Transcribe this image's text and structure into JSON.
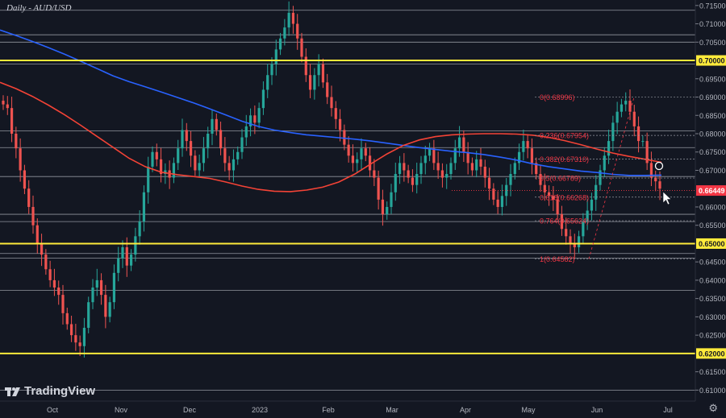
{
  "title": "Daily - AUD/USD",
  "brand": "TradingView",
  "settings_icon": "gear-icon",
  "colors": {
    "background": "#131722",
    "up": "#26a69a",
    "down": "#ef5350",
    "ma_blue": "#2962ff",
    "ma_red": "#f44336",
    "key_level": "#ffeb3b",
    "fib": "#f23645",
    "current_price": "#f23645"
  },
  "chart_data": {
    "type": "candlestick",
    "title": "Daily - AUD/USD",
    "ylim": [
      0.607,
      0.7165
    ],
    "y_ticks": [
      "0.71500",
      "0.71000",
      "0.70500",
      "0.69500",
      "0.69000",
      "0.68500",
      "0.68000",
      "0.67500",
      "0.67000",
      "0.66000",
      "0.65500",
      "0.64500",
      "0.64000",
      "0.63500",
      "0.63000",
      "0.62500",
      "0.61500",
      "0.61000"
    ],
    "x_ticks": [
      "Oct",
      "Nov",
      "Dec",
      "2023",
      "Feb",
      "Mar",
      "Apr",
      "May",
      "Jun",
      "Jul"
    ],
    "key_levels": [
      {
        "price": 0.7,
        "label": "0.70000"
      },
      {
        "price": 0.65,
        "label": "0.65000"
      },
      {
        "price": 0.62,
        "label": "0.62000"
      }
    ],
    "horizontal_lines": [
      0.7137,
      0.707,
      0.705,
      0.699,
      0.6808,
      0.6762,
      0.6683,
      0.658,
      0.656,
      0.6473,
      0.646,
      0.6372,
      0.61
    ],
    "current_price": {
      "value": 0.66449,
      "label": "0.66449"
    },
    "fibonacci": [
      {
        "ratio": "0",
        "price": 0.68996,
        "label": "0(0.68996)"
      },
      {
        "ratio": "0.236",
        "price": 0.67954,
        "label": "0.236(0.67954)"
      },
      {
        "ratio": "0.382",
        "price": 0.6731,
        "label": "0.382(0.67310)"
      },
      {
        "ratio": "0.5",
        "price": 0.66789,
        "label": "0.5(0.66789)"
      },
      {
        "ratio": "0.618",
        "price": 0.66268,
        "label": "0.618(0.66268)"
      },
      {
        "ratio": "0.764",
        "price": 0.65624,
        "label": "0.764(0.65624)"
      },
      {
        "ratio": "1",
        "price": 0.64582,
        "label": "1(0.64582)"
      }
    ],
    "series": [
      {
        "name": "MA blue",
        "color": "#2962ff",
        "x": [
          0,
          20,
          40,
          60,
          80,
          100,
          120,
          140,
          160,
          180,
          200,
          220,
          240,
          260,
          280,
          300,
          320,
          340,
          360,
          380,
          400,
          420,
          440,
          460,
          480,
          500,
          520,
          540,
          560,
          580,
          600,
          620,
          640,
          660,
          680,
          700,
          720,
          740,
          760,
          780,
          800,
          820
        ],
        "y": [
          0.7083,
          0.7068,
          0.7052,
          0.7035,
          0.7017,
          0.6998,
          0.6978,
          0.6958,
          0.6942,
          0.6928,
          0.6914,
          0.6899,
          0.6884,
          0.6868,
          0.6851,
          0.6834,
          0.682,
          0.681,
          0.6803,
          0.6797,
          0.6793,
          0.6789,
          0.6785,
          0.678,
          0.6774,
          0.6768,
          0.6762,
          0.6757,
          0.6752,
          0.6748,
          0.6743,
          0.6736,
          0.6728,
          0.6718,
          0.671,
          0.6704,
          0.6698,
          0.6694,
          0.6689,
          0.6686,
          0.6686,
          0.6687
        ]
      },
      {
        "name": "MA red",
        "color": "#f44336",
        "x": [
          0,
          20,
          40,
          60,
          80,
          100,
          120,
          140,
          160,
          180,
          200,
          220,
          240,
          260,
          280,
          300,
          320,
          340,
          360,
          380,
          400,
          420,
          440,
          460,
          480,
          500,
          520,
          540,
          560,
          580,
          600,
          620,
          640,
          660,
          680,
          700,
          720,
          740,
          760,
          780,
          800,
          820
        ],
        "y": [
          0.694,
          0.6923,
          0.6902,
          0.6878,
          0.6852,
          0.6823,
          0.6793,
          0.6763,
          0.6733,
          0.671,
          0.6695,
          0.6688,
          0.6683,
          0.6678,
          0.6668,
          0.6657,
          0.6648,
          0.6643,
          0.6642,
          0.6646,
          0.6654,
          0.6668,
          0.669,
          0.6718,
          0.6745,
          0.6768,
          0.6783,
          0.6792,
          0.6797,
          0.6799,
          0.68,
          0.68,
          0.6799,
          0.6796,
          0.679,
          0.6781,
          0.677,
          0.6758,
          0.6747,
          0.6738,
          0.673,
          0.6722
        ]
      },
      {
        "name": "AUD/USD daily close",
        "color": "#26a69a",
        "close": [
          0.688,
          0.687,
          0.68,
          0.676,
          0.67,
          0.665,
          0.66,
          0.655,
          0.65,
          0.647,
          0.643,
          0.64,
          0.638,
          0.636,
          0.631,
          0.628,
          0.625,
          0.623,
          0.622,
          0.627,
          0.634,
          0.638,
          0.64,
          0.636,
          0.63,
          0.634,
          0.642,
          0.646,
          0.649,
          0.644,
          0.647,
          0.652,
          0.656,
          0.664,
          0.671,
          0.675,
          0.673,
          0.669,
          0.67,
          0.668,
          0.672,
          0.676,
          0.681,
          0.678,
          0.674,
          0.67,
          0.672,
          0.676,
          0.68,
          0.684,
          0.681,
          0.676,
          0.672,
          0.67,
          0.673,
          0.675,
          0.679,
          0.682,
          0.685,
          0.683,
          0.687,
          0.692,
          0.696,
          0.699,
          0.703,
          0.706,
          0.709,
          0.713,
          0.71,
          0.706,
          0.701,
          0.696,
          0.692,
          0.696,
          0.699,
          0.694,
          0.69,
          0.687,
          0.684,
          0.681,
          0.677,
          0.674,
          0.672,
          0.673,
          0.676,
          0.674,
          0.67,
          0.668,
          0.662,
          0.658,
          0.66,
          0.664,
          0.669,
          0.672,
          0.67,
          0.668,
          0.666,
          0.669,
          0.672,
          0.674,
          0.676,
          0.672,
          0.67,
          0.668,
          0.669,
          0.672,
          0.676,
          0.679,
          0.675,
          0.672,
          0.67,
          0.673,
          0.671,
          0.668,
          0.665,
          0.662,
          0.66,
          0.663,
          0.666,
          0.669,
          0.672,
          0.675,
          0.678,
          0.676,
          0.672,
          0.669,
          0.666,
          0.664,
          0.663,
          0.662,
          0.658,
          0.654,
          0.652,
          0.65,
          0.649,
          0.652,
          0.656,
          0.659,
          0.662,
          0.666,
          0.67,
          0.674,
          0.678,
          0.683,
          0.686,
          0.688,
          0.689,
          0.686,
          0.682,
          0.678,
          0.678,
          0.672,
          0.668,
          0.667,
          0.665
        ]
      }
    ]
  }
}
